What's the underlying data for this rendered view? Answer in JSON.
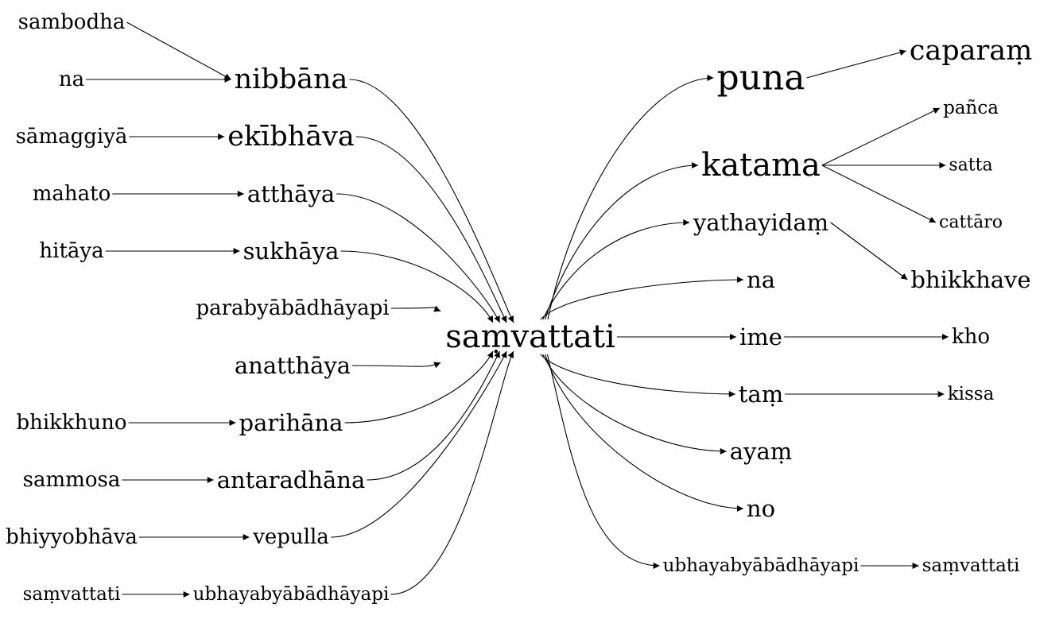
{
  "nodes": [
    {
      "id": "sambodha",
      "label": "sambodha",
      "size": "m"
    },
    {
      "id": "na_l",
      "label": "na",
      "size": "m"
    },
    {
      "id": "nibbana",
      "label": "nibbāna",
      "size": "l"
    },
    {
      "id": "samaggiya",
      "label": "sāmaggiyā",
      "size": "m"
    },
    {
      "id": "ekibhava",
      "label": "ekībhāva",
      "size": "l"
    },
    {
      "id": "mahato",
      "label": "mahato",
      "size": "m"
    },
    {
      "id": "atthaya",
      "label": "atthāya",
      "size": "ml"
    },
    {
      "id": "hitaya",
      "label": "hitāya",
      "size": "m"
    },
    {
      "id": "sukhaya",
      "label": "sukhāya",
      "size": "ml"
    },
    {
      "id": "parabya",
      "label": "parabyābādhāyapi",
      "size": "m"
    },
    {
      "id": "anatthaya",
      "label": "anatthāya",
      "size": "ml"
    },
    {
      "id": "bhikkhuno",
      "label": "bhikkhuno",
      "size": "m"
    },
    {
      "id": "parihana",
      "label": "parihāna",
      "size": "ml"
    },
    {
      "id": "sammosa",
      "label": "sammosa",
      "size": "m"
    },
    {
      "id": "antaradhana",
      "label": "antaradhāna",
      "size": "ml"
    },
    {
      "id": "bhiyyo",
      "label": "bhiyyobhāva",
      "size": "m"
    },
    {
      "id": "vepulla",
      "label": "vepulla",
      "size": "m"
    },
    {
      "id": "samv_l",
      "label": "saṃvattati",
      "size": "s"
    },
    {
      "id": "ubhaya_l",
      "label": "ubhayabyābādhāyapi",
      "size": "s"
    },
    {
      "id": "samv_c",
      "label": "saṃvattati",
      "size": "xl"
    },
    {
      "id": "puna",
      "label": "puna",
      "size": "xxl"
    },
    {
      "id": "caparam",
      "label": "caparaṃ",
      "size": "l"
    },
    {
      "id": "katama",
      "label": "katama",
      "size": "xl"
    },
    {
      "id": "panca",
      "label": "pañca",
      "size": "s"
    },
    {
      "id": "satta",
      "label": "satta",
      "size": "xs"
    },
    {
      "id": "cattaro",
      "label": "cattāro",
      "size": "xs"
    },
    {
      "id": "yathayidam",
      "label": "yathayidaṃ",
      "size": "ml"
    },
    {
      "id": "bhikkhave",
      "label": "bhikkhave",
      "size": "ml"
    },
    {
      "id": "na_r",
      "label": "na",
      "size": "ml"
    },
    {
      "id": "ime",
      "label": "ime",
      "size": "ml"
    },
    {
      "id": "kho",
      "label": "kho",
      "size": "m"
    },
    {
      "id": "tam",
      "label": "taṃ",
      "size": "ml"
    },
    {
      "id": "kissa",
      "label": "kissa",
      "size": "s"
    },
    {
      "id": "ayam",
      "label": "ayaṃ",
      "size": "ml"
    },
    {
      "id": "no",
      "label": "no",
      "size": "ml"
    },
    {
      "id": "ubhaya_r",
      "label": "ubhayabyābādhāyapi",
      "size": "s"
    },
    {
      "id": "samv_r",
      "label": "saṃvattati",
      "size": "s"
    }
  ],
  "edges": [
    [
      "sambodha",
      "nibbana"
    ],
    [
      "na_l",
      "nibbana"
    ],
    [
      "samaggiya",
      "ekibhava"
    ],
    [
      "mahato",
      "atthaya"
    ],
    [
      "hitaya",
      "sukhaya"
    ],
    [
      "bhikkhuno",
      "parihana"
    ],
    [
      "sammosa",
      "antaradhana"
    ],
    [
      "bhiyyo",
      "vepulla"
    ],
    [
      "samv_l",
      "ubhaya_l"
    ],
    [
      "nibbana",
      "samv_c"
    ],
    [
      "ekibhava",
      "samv_c"
    ],
    [
      "atthaya",
      "samv_c"
    ],
    [
      "sukhaya",
      "samv_c"
    ],
    [
      "parabya",
      "samv_c"
    ],
    [
      "anatthaya",
      "samv_c"
    ],
    [
      "parihana",
      "samv_c"
    ],
    [
      "antaradhana",
      "samv_c"
    ],
    [
      "vepulla",
      "samv_c"
    ],
    [
      "ubhaya_l",
      "samv_c"
    ],
    [
      "samv_c",
      "puna"
    ],
    [
      "samv_c",
      "katama"
    ],
    [
      "samv_c",
      "yathayidam"
    ],
    [
      "samv_c",
      "na_r"
    ],
    [
      "samv_c",
      "ime"
    ],
    [
      "samv_c",
      "tam"
    ],
    [
      "samv_c",
      "ayam"
    ],
    [
      "samv_c",
      "no"
    ],
    [
      "samv_c",
      "ubhaya_r"
    ],
    [
      "puna",
      "caparam"
    ],
    [
      "katama",
      "panca"
    ],
    [
      "katama",
      "satta"
    ],
    [
      "katama",
      "cattaro"
    ],
    [
      "yathayidam",
      "bhikkhave"
    ],
    [
      "ime",
      "kho"
    ],
    [
      "tam",
      "kissa"
    ],
    [
      "ubhaya_r",
      "samv_r"
    ]
  ]
}
